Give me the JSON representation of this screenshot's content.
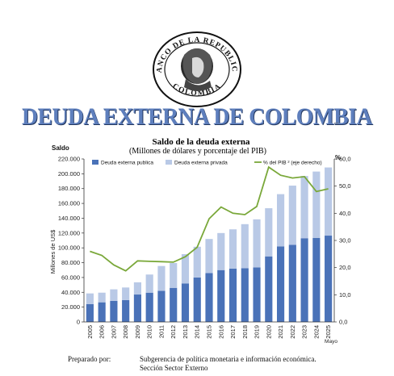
{
  "seal": {
    "top_text": "BANCO DE LA REPUBLICA",
    "bottom_text": "COLOMBIA"
  },
  "banner": {
    "title": "DEUDA EXTERNA DE COLOMBIA",
    "mark": "BR"
  },
  "chart_data": {
    "type": "bar",
    "title": "Saldo de la deuda externa",
    "subtitle": "(Millones de dólares y porcentaje del PIB)",
    "left_unit_label": "Saldo",
    "right_unit_label": "%",
    "ylabel": "Millones de US$",
    "categories": [
      "2005",
      "2006",
      "2007",
      "2008",
      "2009",
      "2010",
      "2011",
      "2012",
      "2013",
      "2014",
      "2015",
      "2016",
      "2017",
      "2018",
      "2019",
      "2020",
      "2021",
      "2022",
      "2023",
      "2024",
      "2025"
    ],
    "category_note": "Mayo",
    "stacked": true,
    "ylim": [
      0,
      220000
    ],
    "y_ticks": [
      "0",
      "20.000",
      "40.000",
      "60.000",
      "80.000",
      "100.000",
      "120.000",
      "140.000",
      "160.000",
      "180.000",
      "200.000",
      "220.000"
    ],
    "y2lim": [
      0,
      60
    ],
    "y2_ticks": [
      "0,0",
      "10,0",
      "20,0",
      "30,0",
      "40,0",
      "50,0",
      "60,0"
    ],
    "series": [
      {
        "name": "Deuda externa publica",
        "axis": "left",
        "color": "#4a72b8",
        "values": [
          24000,
          26500,
          28500,
          29500,
          37000,
          39500,
          42000,
          46000,
          52000,
          60000,
          66000,
          70000,
          72000,
          72500,
          73500,
          88500,
          102000,
          104000,
          113000,
          113500,
          116500
        ]
      },
      {
        "name": "Deuda externa privada",
        "axis": "left",
        "color": "#b9c9e6",
        "values": [
          14500,
          13000,
          15500,
          17000,
          16500,
          24500,
          33500,
          33500,
          39500,
          41500,
          46000,
          50000,
          53000,
          59500,
          65000,
          65000,
          70500,
          80000,
          84000,
          89500,
          92000
        ]
      },
      {
        "name": "% del PIB ² (eje derecho)",
        "axis": "right",
        "type": "line",
        "color": "#7aa83a",
        "values": [
          26.0,
          24.5,
          21.0,
          18.8,
          22.5,
          22.3,
          22.2,
          22.0,
          24.0,
          27.5,
          38.0,
          42.3,
          40.0,
          39.5,
          42.5,
          57.0,
          54.0,
          53.0,
          53.5,
          48.0,
          49.0
        ]
      }
    ],
    "legend_position": "top",
    "grid": false
  },
  "footer": {
    "label": "Preparado por:",
    "line1": "Subgerencia de política monetaria e información económica.",
    "line2": "Sección Sector Externo"
  }
}
